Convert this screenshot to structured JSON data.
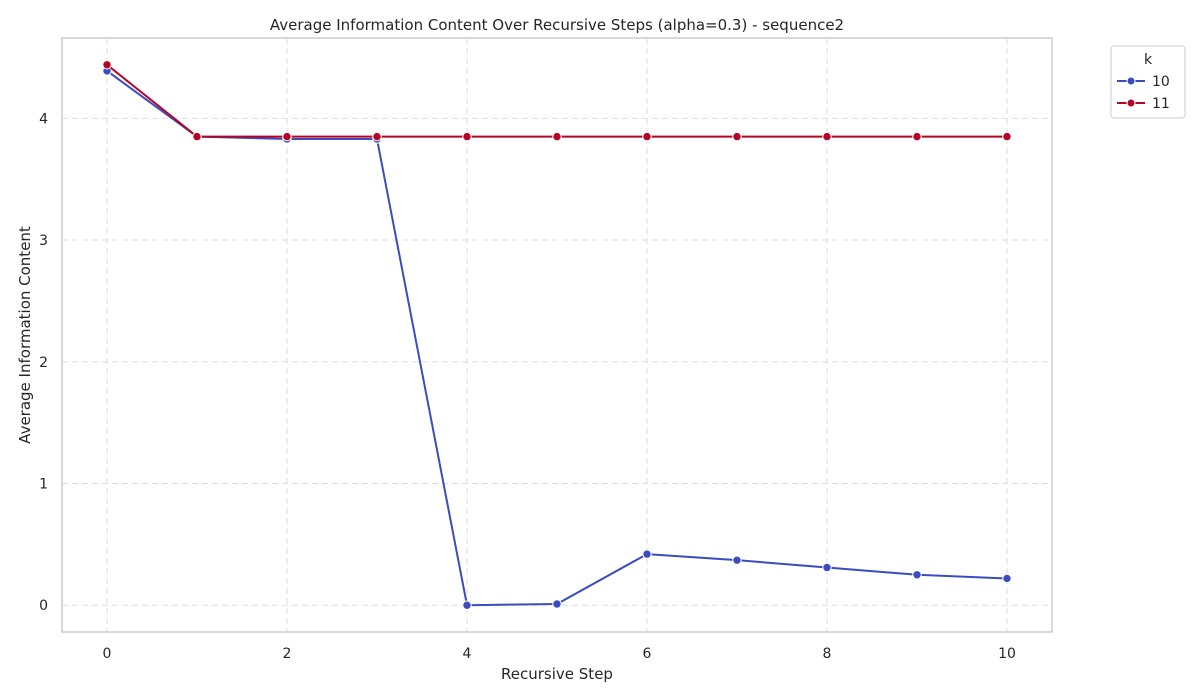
{
  "chart_data": {
    "type": "line",
    "title": "Average Information Content Over Recursive Steps (alpha=0.3) - sequence2",
    "xlabel": "Recursive Step",
    "ylabel": "Average Information Content",
    "xlim": [
      -0.5,
      10.5
    ],
    "ylim": [
      -0.22,
      4.66
    ],
    "x_ticks": [
      0,
      2,
      4,
      6,
      8,
      10
    ],
    "y_ticks": [
      0,
      1,
      2,
      3,
      4
    ],
    "grid": true,
    "legend": {
      "title": "k",
      "placement": "top-right-outside"
    },
    "x": [
      0,
      1,
      2,
      3,
      4,
      5,
      6,
      7,
      8,
      9,
      10
    ],
    "series": [
      {
        "name": "10",
        "color": "#3b4cc0",
        "values": [
          4.39,
          3.85,
          3.83,
          3.83,
          0.0,
          0.01,
          0.42,
          0.37,
          0.31,
          0.25,
          0.22
        ]
      },
      {
        "name": "11",
        "color": "#b40426",
        "values": [
          4.44,
          3.85,
          3.85,
          3.85,
          3.85,
          3.85,
          3.85,
          3.85,
          3.85,
          3.85,
          3.85
        ]
      }
    ]
  }
}
